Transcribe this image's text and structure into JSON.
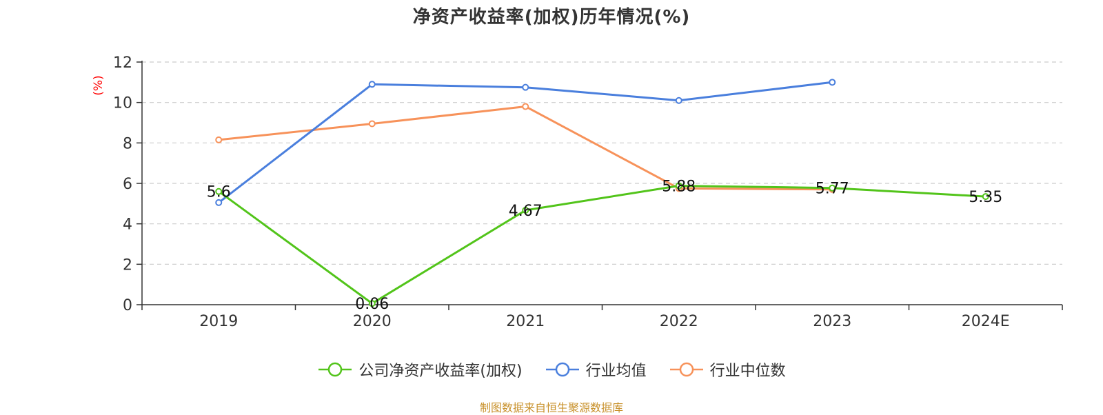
{
  "chart_data": {
    "type": "line",
    "title": "净资产收益率(加权)历年情况(%)",
    "ylabel": "(%)",
    "xlabel": "",
    "categories": [
      "2019",
      "2020",
      "2021",
      "2022",
      "2023",
      "2024E"
    ],
    "ylim": [
      0,
      12
    ],
    "yticks": [
      0,
      2,
      4,
      6,
      8,
      10,
      12
    ],
    "grid": true,
    "legend_position": "bottom",
    "series": [
      {
        "name": "公司净资产收益率(加权)",
        "color": "#52c41a",
        "values": [
          5.6,
          0.06,
          4.67,
          5.88,
          5.77,
          5.35
        ],
        "labels": [
          "5.6",
          "0.06",
          "4.67",
          "5.88",
          "5.77",
          "5.35"
        ]
      },
      {
        "name": "行业均值",
        "color": "#4a7fdd",
        "values": [
          5.05,
          10.9,
          10.75,
          10.1,
          11.0,
          null
        ]
      },
      {
        "name": "行业中位数",
        "color": "#f7925a",
        "values": [
          8.15,
          8.95,
          9.8,
          5.75,
          5.7,
          null
        ]
      }
    ]
  },
  "source_text": "制图数据来自恒生聚源数据库",
  "colors": {
    "ylabel": "#ff0000",
    "source": "#c8912b",
    "axis": "#333333",
    "grid": "#cccccc"
  }
}
